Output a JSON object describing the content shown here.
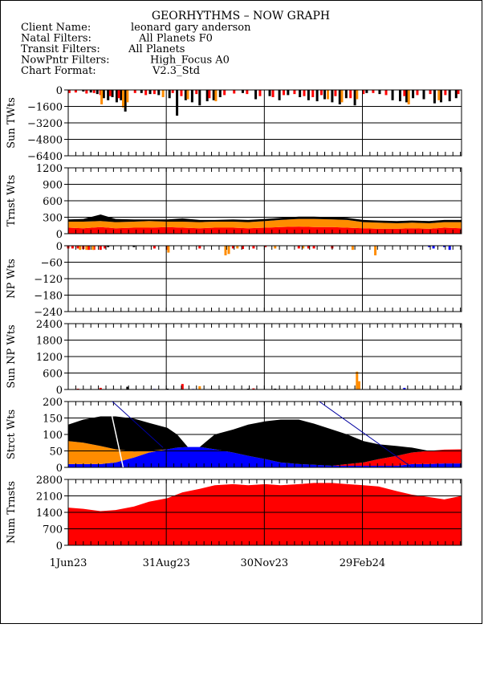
{
  "header": {
    "title": "GEORHYTHMS – NOW GRAPH",
    "lines": [
      {
        "label": "Client Name:",
        "value": "leonard gary anderson"
      },
      {
        "label": "Natal Filters:",
        "value": "All Planets F0"
      },
      {
        "label": "Transit Filters:",
        "value": "All Planets"
      },
      {
        "label": "NowPntr Filters:",
        "value": "High_Focus A0"
      },
      {
        "label": "Chart Format:",
        "value": "V2.3_Std"
      }
    ]
  },
  "colors": {
    "black": "#000000",
    "red": "#ff0000",
    "orange": "#ff8c00",
    "blue": "#0000ff",
    "white_line": "#ffffff",
    "nav_line": "#0000a0"
  },
  "chart_data": {
    "type": "bar",
    "x_axis": {
      "start": "2023-06-01",
      "end": "2024-05-31",
      "tick_labels": [
        "1Jun23",
        "31Aug23",
        "30Nov23",
        "29Feb24"
      ],
      "tick_dates": [
        "2023-06-01",
        "2023-08-31",
        "2023-11-30",
        "2024-02-29"
      ]
    },
    "panels": [
      {
        "ylabel": "Sun TWts",
        "yticks": [
          0,
          -1600,
          -3200,
          -4800,
          -6400
        ],
        "ylim": [
          -6400,
          0
        ],
        "type": "bar",
        "series": [
          {
            "color": "black",
            "x": [
              "2023-06-15",
              "2023-06-22",
              "2023-06-28",
              "2023-07-04",
              "2023-07-08",
              "2023-07-12",
              "2023-07-16",
              "2023-07-20",
              "2023-07-24",
              "2023-08-08",
              "2023-08-16",
              "2023-08-24",
              "2023-09-03",
              "2023-09-10",
              "2023-09-18",
              "2023-09-24",
              "2023-10-01",
              "2023-10-08",
              "2023-10-14",
              "2023-10-20",
              "2023-11-10",
              "2023-11-22",
              "2023-12-05",
              "2023-12-14",
              "2023-12-22",
              "2024-01-02",
              "2024-01-10",
              "2024-01-18",
              "2024-01-25",
              "2024-02-01",
              "2024-02-08",
              "2024-02-14",
              "2024-02-22",
              "2024-03-04",
              "2024-03-16",
              "2024-03-28",
              "2024-04-04",
              "2024-04-10",
              "2024-04-16",
              "2024-04-26",
              "2024-05-06",
              "2024-05-12",
              "2024-05-20",
              "2024-05-26"
            ],
            "values": [
              -150,
              -250,
              -400,
              -800,
              -1000,
              -700,
              -1200,
              -1000,
              -2100,
              -300,
              -400,
              -500,
              -800,
              -2500,
              -1000,
              -1200,
              -1500,
              -1100,
              -1000,
              -700,
              -300,
              -900,
              -600,
              -1000,
              -500,
              -700,
              -1000,
              -1100,
              -900,
              -1200,
              -1400,
              -800,
              -1500,
              -300,
              -400,
              -1000,
              -1100,
              -1200,
              -800,
              -900,
              -1300,
              -1200,
              -1100,
              -800
            ]
          },
          {
            "color": "red",
            "x": [
              "2023-06-02",
              "2023-06-08",
              "2023-06-18",
              "2023-06-25",
              "2023-07-01",
              "2023-07-10",
              "2023-07-18",
              "2023-08-02",
              "2023-08-12",
              "2023-08-20",
              "2023-09-06",
              "2023-09-14",
              "2023-09-28",
              "2023-10-10",
              "2023-10-24",
              "2023-11-02",
              "2023-11-14",
              "2023-11-26",
              "2023-12-08",
              "2023-12-18",
              "2023-12-28",
              "2024-01-06",
              "2024-01-14",
              "2024-01-22",
              "2024-02-04",
              "2024-02-18",
              "2024-03-01",
              "2024-03-10",
              "2024-03-22",
              "2024-04-08",
              "2024-04-20",
              "2024-05-02",
              "2024-05-16",
              "2024-05-28"
            ],
            "values": [
              -300,
              -250,
              -350,
              -300,
              -500,
              -600,
              -800,
              -300,
              -500,
              -400,
              -300,
              -600,
              -400,
              -800,
              -500,
              -350,
              -400,
              -600,
              -700,
              -500,
              -400,
              -600,
              -700,
              -500,
              -600,
              -800,
              -400,
              -300,
              -500,
              -600,
              -500,
              -400,
              -500,
              -400
            ]
          },
          {
            "color": "orange",
            "x": [
              "2023-07-02",
              "2023-07-22",
              "2023-07-26",
              "2023-08-28",
              "2023-09-20",
              "2023-10-16",
              "2024-01-28",
              "2024-02-10",
              "2024-02-24",
              "2024-04-12",
              "2024-05-10"
            ],
            "values": [
              -1400,
              -1700,
              -1200,
              -700,
              -900,
              -1100,
              -900,
              -1200,
              -900,
              -1400,
              -1000
            ]
          }
        ]
      },
      {
        "ylabel": "Trnst Wts",
        "yticks": [
          0,
          300,
          600,
          900,
          1200
        ],
        "ylim": [
          0,
          1200
        ],
        "type": "stacked-area",
        "x": [
          "2023-06-01",
          "2023-06-15",
          "2023-07-01",
          "2023-07-15",
          "2023-08-01",
          "2023-08-15",
          "2023-09-01",
          "2023-09-15",
          "2023-10-01",
          "2023-10-15",
          "2023-11-01",
          "2023-11-15",
          "2023-12-01",
          "2023-12-15",
          "2024-01-01",
          "2024-01-15",
          "2024-02-01",
          "2024-02-15",
          "2024-03-01",
          "2024-03-15",
          "2024-04-01",
          "2024-04-15",
          "2024-05-01",
          "2024-05-15",
          "2024-05-31"
        ],
        "series": [
          {
            "color": "red",
            "values": [
              110,
              100,
              120,
              100,
              110,
              110,
              120,
              110,
              100,
              110,
              110,
              100,
              110,
              120,
              130,
              120,
              120,
              110,
              100,
              90,
              90,
              100,
              90,
              110,
              100
            ]
          },
          {
            "color": "orange",
            "values": [
              110,
              120,
              110,
              110,
              110,
              120,
              100,
              110,
              110,
              110,
              110,
              110,
              120,
              130,
              140,
              150,
              140,
              140,
              110,
              110,
              100,
              100,
              100,
              100,
              110
            ]
          },
          {
            "color": "black",
            "values": [
              40,
              50,
              120,
              60,
              40,
              30,
              40,
              60,
              40,
              30,
              40,
              40,
              40,
              40,
              40,
              40,
              40,
              40,
              40,
              40,
              40,
              40,
              40,
              40,
              40
            ]
          }
        ]
      },
      {
        "ylabel": "NP Wts",
        "yticks": [
          0,
          -60,
          -120,
          -180,
          -240
        ],
        "ylim": [
          -240,
          0
        ],
        "type": "bar",
        "series": [
          {
            "color": "red",
            "x": [
              "2023-06-01",
              "2023-06-05",
              "2023-06-10",
              "2023-06-15",
              "2023-06-20",
              "2023-06-25",
              "2023-07-01",
              "2023-07-05",
              "2023-08-20",
              "2023-09-01",
              "2023-10-01",
              "2023-11-01",
              "2023-11-10",
              "2023-11-20",
              "2023-12-01",
              "2024-01-01",
              "2024-01-10",
              "2024-01-15",
              "2024-02-01"
            ],
            "values": [
              -10,
              -10,
              -10,
              -12,
              -15,
              -15,
              -15,
              -10,
              -10,
              -15,
              -10,
              -10,
              -12,
              -10,
              -5,
              -10,
              -10,
              -10,
              -10
            ]
          },
          {
            "color": "orange",
            "x": [
              "2023-06-12",
              "2023-06-18",
              "2023-06-24",
              "2023-09-02",
              "2023-10-25",
              "2023-10-28",
              "2023-11-05",
              "2023-12-10",
              "2024-01-05",
              "2024-02-20",
              "2024-03-12"
            ],
            "values": [
              -15,
              -15,
              -15,
              -25,
              -35,
              -30,
              -10,
              -10,
              -10,
              -15,
              -35
            ]
          },
          {
            "color": "black",
            "x": [
              "2023-07-08",
              "2023-08-01"
            ],
            "values": [
              -5,
              -5
            ]
          },
          {
            "color": "blue",
            "x": [
              "2024-05-01",
              "2024-05-05",
              "2024-05-15",
              "2024-05-20"
            ],
            "values": [
              -5,
              -10,
              -5,
              -15
            ]
          }
        ]
      },
      {
        "ylabel": "Sun NP Wts",
        "yticks": [
          0,
          600,
          1200,
          1800,
          2400
        ],
        "ylim": [
          0,
          2400
        ],
        "type": "bar",
        "series": [
          {
            "color": "red",
            "x": [
              "2023-06-10",
              "2023-07-01",
              "2023-09-15",
              "2023-11-20"
            ],
            "values": [
              30,
              60,
              200,
              40
            ]
          },
          {
            "color": "orange",
            "x": [
              "2023-10-01",
              "2024-02-24",
              "2024-02-26"
            ],
            "values": [
              120,
              650,
              300
            ]
          },
          {
            "color": "black",
            "x": [
              "2023-07-26",
              "2023-09-01",
              "2023-11-15",
              "2023-12-10",
              "2024-01-01"
            ],
            "values": [
              100,
              30,
              30,
              30,
              20
            ]
          },
          {
            "color": "blue",
            "x": [
              "2023-08-20",
              "2023-09-25",
              "2024-04-08"
            ],
            "values": [
              20,
              20,
              60
            ]
          }
        ]
      },
      {
        "ylabel": "Strct Wts",
        "yticks": [
          0,
          50,
          100,
          150,
          200
        ],
        "ylim": [
          0,
          200
        ],
        "type": "stacked-area",
        "x": [
          "2023-06-01",
          "2023-06-15",
          "2023-07-01",
          "2023-07-15",
          "2023-08-01",
          "2023-08-15",
          "2023-09-01",
          "2023-09-10",
          "2023-09-20",
          "2023-10-01",
          "2023-10-15",
          "2023-11-01",
          "2023-11-15",
          "2023-12-01",
          "2023-12-15",
          "2024-01-01",
          "2024-01-15",
          "2024-02-01",
          "2024-02-15",
          "2024-03-01",
          "2024-03-15",
          "2024-04-01",
          "2024-04-15",
          "2024-05-01",
          "2024-05-15",
          "2024-05-31"
        ],
        "series": [
          {
            "color": "blue",
            "values": [
              10,
              10,
              10,
              15,
              30,
              45,
              55,
              60,
              62,
              62,
              55,
              45,
              35,
              25,
              15,
              10,
              8,
              5,
              5,
              5,
              5,
              5,
              10,
              10,
              12,
              12
            ]
          },
          {
            "color": "red",
            "values": [
              0,
              0,
              0,
              0,
              0,
              0,
              0,
              0,
              0,
              0,
              0,
              0,
              0,
              0,
              0,
              0,
              0,
              0,
              5,
              10,
              20,
              30,
              35,
              40,
              42,
              43
            ]
          },
          {
            "color": "orange",
            "values": [
              70,
              65,
              55,
              40,
              18,
              5,
              0,
              0,
              0,
              0,
              0,
              0,
              0,
              0,
              0,
              0,
              0,
              0,
              0,
              0,
              0,
              0,
              0,
              0,
              0,
              0
            ]
          },
          {
            "color": "black",
            "values": [
              50,
              70,
              90,
              100,
              100,
              85,
              65,
              40,
              0,
              0,
              45,
              70,
              95,
              115,
              130,
              135,
              125,
              110,
              90,
              65,
              45,
              30,
              15,
              0,
              0,
              0
            ]
          }
        ]
      },
      {
        "ylabel": "Num Trnsts",
        "yticks": [
          0,
          700,
          1400,
          2100,
          2800
        ],
        "ylim": [
          0,
          2800
        ],
        "type": "area",
        "x": [
          "2023-06-01",
          "2023-06-15",
          "2023-07-01",
          "2023-07-15",
          "2023-08-01",
          "2023-08-15",
          "2023-09-01",
          "2023-09-15",
          "2023-10-01",
          "2023-10-15",
          "2023-11-01",
          "2023-11-15",
          "2023-12-01",
          "2023-12-15",
          "2024-01-01",
          "2024-01-15",
          "2024-02-01",
          "2024-02-15",
          "2024-03-01",
          "2024-03-15",
          "2024-04-01",
          "2024-04-15",
          "2024-05-01",
          "2024-05-15",
          "2024-05-31"
        ],
        "series": [
          {
            "color": "red",
            "values": [
              1600,
              1550,
              1450,
              1500,
              1650,
              1850,
              2000,
              2250,
              2400,
              2550,
              2600,
              2550,
              2600,
              2550,
              2600,
              2650,
              2650,
              2600,
              2550,
              2500,
              2300,
              2150,
              2050,
              1950,
              2100
            ]
          }
        ]
      }
    ]
  }
}
